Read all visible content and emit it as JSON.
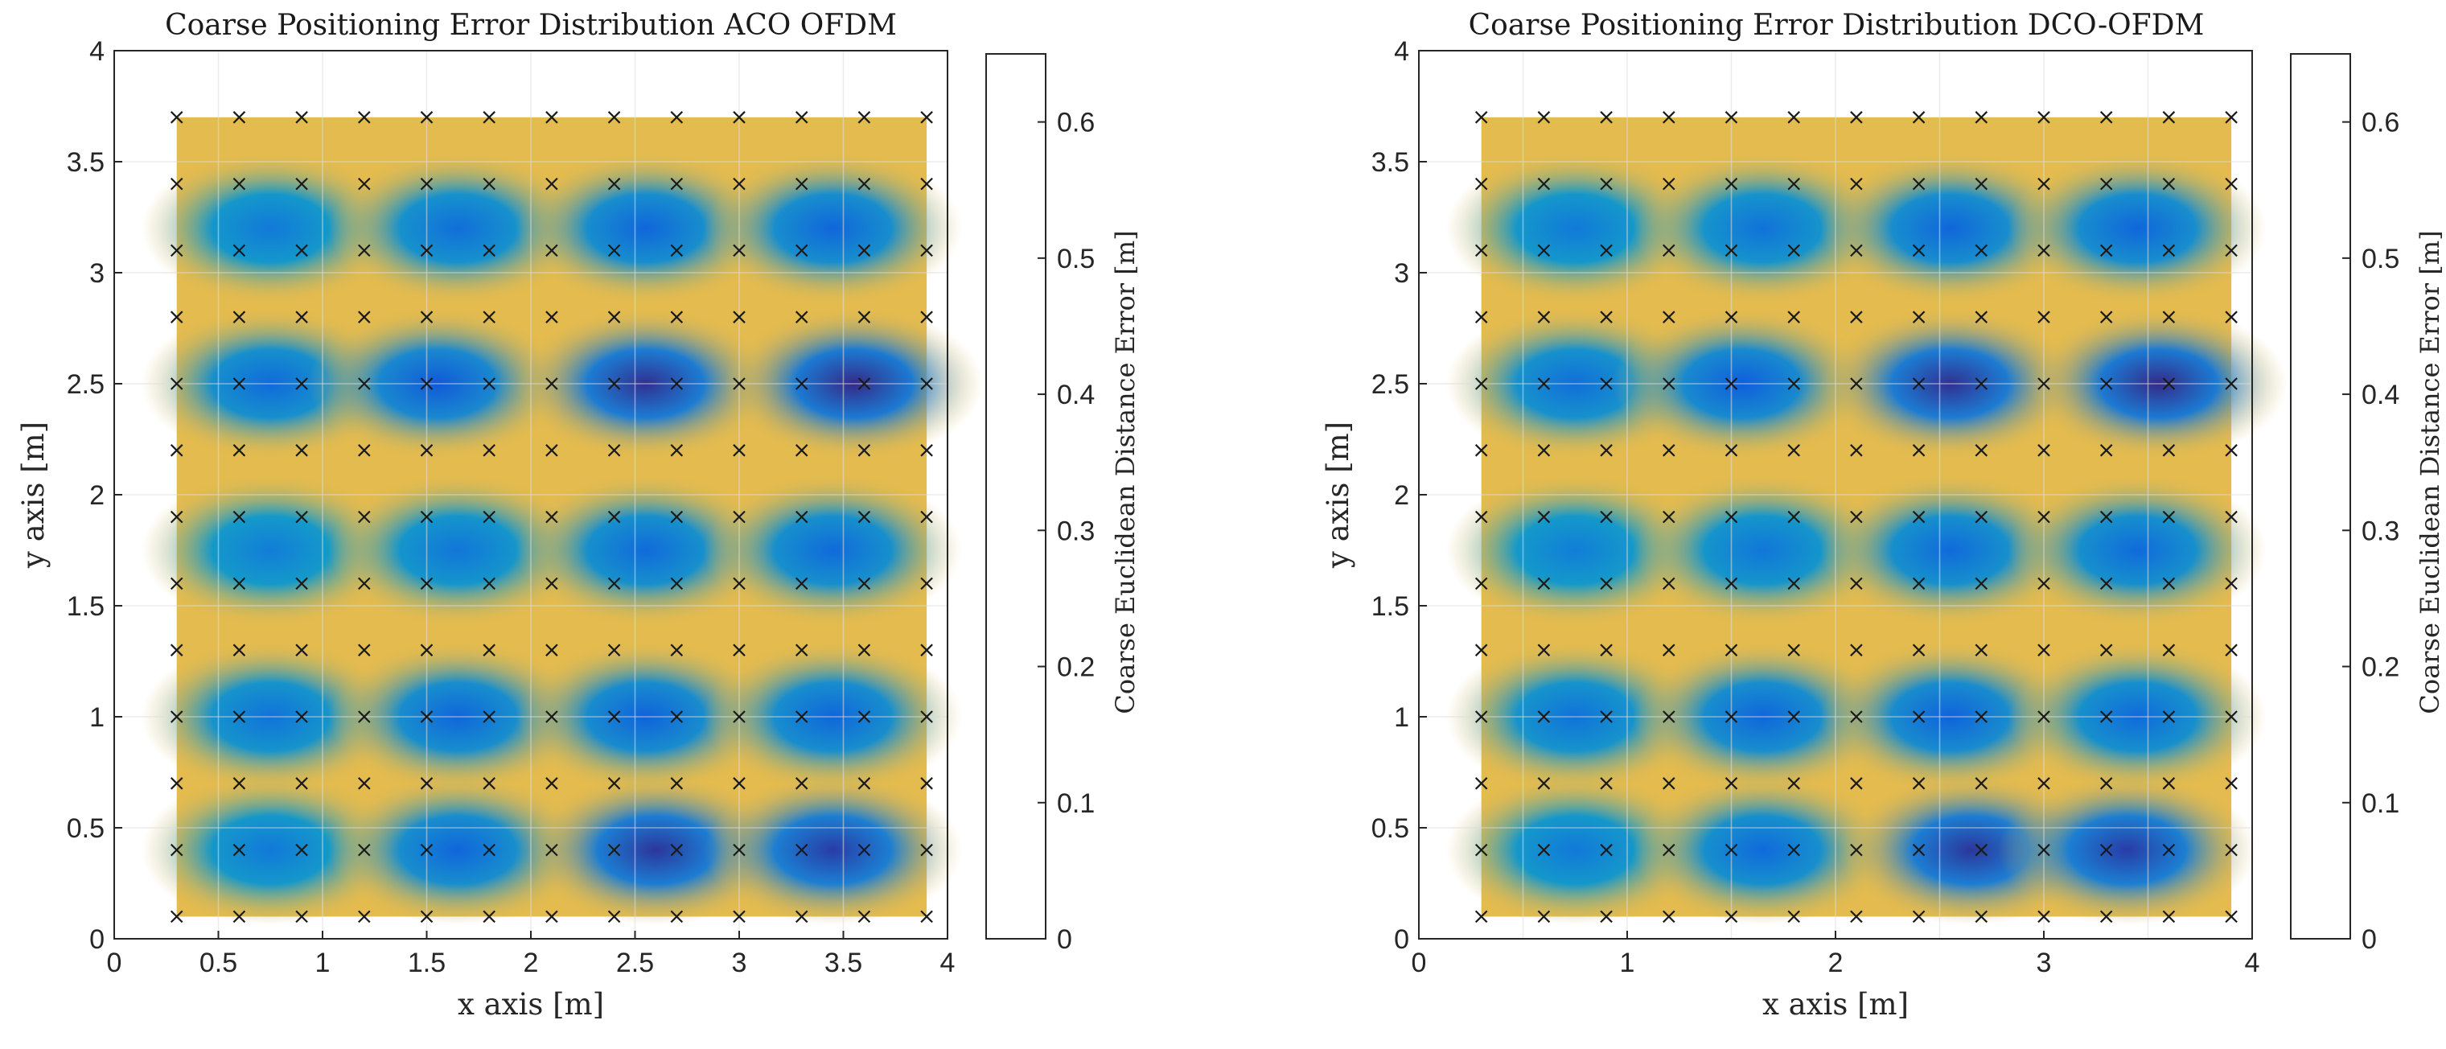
{
  "chart_data": [
    {
      "type": "heatmap",
      "title": "Coarse Positioning Error Distribution ACO OFDM",
      "xlabel": "x axis [m]",
      "ylabel": "y axis [m]",
      "xlim": [
        0,
        4
      ],
      "ylim": [
        0,
        4
      ],
      "xticks": [
        "0",
        "0.5",
        "1",
        "1.5",
        "2",
        "2.5",
        "3",
        "3.5",
        "4"
      ],
      "yticks": [
        "0",
        "0.5",
        "1",
        "1.5",
        "2",
        "2.5",
        "3",
        "3.5",
        "4"
      ],
      "grid": true,
      "x": [
        0.3,
        0.6,
        0.9,
        1.2,
        1.5,
        1.8,
        2.1,
        2.4,
        2.7,
        3.0,
        3.3,
        3.6,
        3.9
      ],
      "y": [
        0.1,
        0.4,
        0.7,
        1.0,
        1.3,
        1.6,
        1.9,
        2.2,
        2.5,
        2.8,
        3.1,
        3.4,
        3.7
      ],
      "marker": "x",
      "colorbar": {
        "label": "Coarse Euclidean Distance Error [m]",
        "range": [
          0,
          0.65
        ],
        "ticks": [
          "0",
          "0.1",
          "0.2",
          "0.3",
          "0.4",
          "0.5",
          "0.6"
        ],
        "colormap": "parula"
      },
      "minima": [
        {
          "x": 0.75,
          "y": 0.4,
          "value": 0.16
        },
        {
          "x": 1.65,
          "y": 0.4,
          "value": 0.11
        },
        {
          "x": 2.6,
          "y": 0.4,
          "value": 0.02
        },
        {
          "x": 3.45,
          "y": 0.4,
          "value": 0.03
        },
        {
          "x": 0.75,
          "y": 1.0,
          "value": 0.14
        },
        {
          "x": 1.65,
          "y": 1.0,
          "value": 0.11
        },
        {
          "x": 2.55,
          "y": 1.0,
          "value": 0.1
        },
        {
          "x": 3.45,
          "y": 1.0,
          "value": 0.11
        },
        {
          "x": 0.75,
          "y": 1.75,
          "value": 0.17
        },
        {
          "x": 1.65,
          "y": 1.75,
          "value": 0.15
        },
        {
          "x": 2.55,
          "y": 1.75,
          "value": 0.12
        },
        {
          "x": 3.45,
          "y": 1.75,
          "value": 0.12
        },
        {
          "x": 0.75,
          "y": 2.5,
          "value": 0.12
        },
        {
          "x": 1.55,
          "y": 2.5,
          "value": 0.08
        },
        {
          "x": 2.55,
          "y": 2.5,
          "value": 0.01
        },
        {
          "x": 3.55,
          "y": 2.5,
          "value": 0.0
        },
        {
          "x": 0.75,
          "y": 3.2,
          "value": 0.16
        },
        {
          "x": 1.65,
          "y": 3.2,
          "value": 0.13
        },
        {
          "x": 2.55,
          "y": 3.2,
          "value": 0.11
        },
        {
          "x": 3.45,
          "y": 3.2,
          "value": 0.11
        }
      ],
      "border_value": 0.55,
      "between_values": [
        0.6,
        0.55,
        0.5
      ]
    },
    {
      "type": "heatmap",
      "title": "Coarse Positioning Error Distribution DCO-OFDM",
      "xlabel": "x axis [m]",
      "ylabel": "y axis [m]",
      "xlim": [
        0,
        4
      ],
      "ylim": [
        0,
        4
      ],
      "xticks": [
        "0",
        "1",
        "2",
        "3",
        "4"
      ],
      "yticks": [
        "0",
        "0.5",
        "1",
        "1.5",
        "2",
        "2.5",
        "3",
        "3.5",
        "4"
      ],
      "grid": true,
      "x": [
        0.3,
        0.6,
        0.9,
        1.2,
        1.5,
        1.8,
        2.1,
        2.4,
        2.7,
        3.0,
        3.3,
        3.6,
        3.9
      ],
      "y": [
        0.1,
        0.4,
        0.7,
        1.0,
        1.3,
        1.6,
        1.9,
        2.2,
        2.5,
        2.8,
        3.1,
        3.4,
        3.7
      ],
      "marker": "x",
      "colorbar": {
        "label": "Coarse Euclidean Distance Error [m]",
        "range": [
          0,
          0.65
        ],
        "ticks": [
          "0",
          "0.1",
          "0.2",
          "0.3",
          "0.4",
          "0.5",
          "0.6"
        ],
        "colormap": "parula"
      },
      "minima": [
        {
          "x": 0.75,
          "y": 0.4,
          "value": 0.16
        },
        {
          "x": 1.65,
          "y": 0.4,
          "value": 0.12
        },
        {
          "x": 2.65,
          "y": 0.4,
          "value": 0.02
        },
        {
          "x": 3.4,
          "y": 0.4,
          "value": 0.03
        },
        {
          "x": 0.75,
          "y": 1.0,
          "value": 0.14
        },
        {
          "x": 1.65,
          "y": 1.0,
          "value": 0.11
        },
        {
          "x": 2.55,
          "y": 1.0,
          "value": 0.1
        },
        {
          "x": 3.45,
          "y": 1.0,
          "value": 0.12
        },
        {
          "x": 0.75,
          "y": 1.75,
          "value": 0.17
        },
        {
          "x": 1.65,
          "y": 1.75,
          "value": 0.15
        },
        {
          "x": 2.55,
          "y": 1.75,
          "value": 0.12
        },
        {
          "x": 3.45,
          "y": 1.75,
          "value": 0.12
        },
        {
          "x": 0.75,
          "y": 2.5,
          "value": 0.13
        },
        {
          "x": 1.55,
          "y": 2.5,
          "value": 0.09
        },
        {
          "x": 2.55,
          "y": 2.5,
          "value": 0.01
        },
        {
          "x": 3.55,
          "y": 2.5,
          "value": 0.0
        },
        {
          "x": 0.75,
          "y": 3.2,
          "value": 0.16
        },
        {
          "x": 1.65,
          "y": 3.2,
          "value": 0.14
        },
        {
          "x": 2.55,
          "y": 3.2,
          "value": 0.11
        },
        {
          "x": 3.45,
          "y": 3.2,
          "value": 0.11
        }
      ],
      "border_value": 0.55,
      "between_values": [
        0.6,
        0.55,
        0.5
      ]
    }
  ]
}
